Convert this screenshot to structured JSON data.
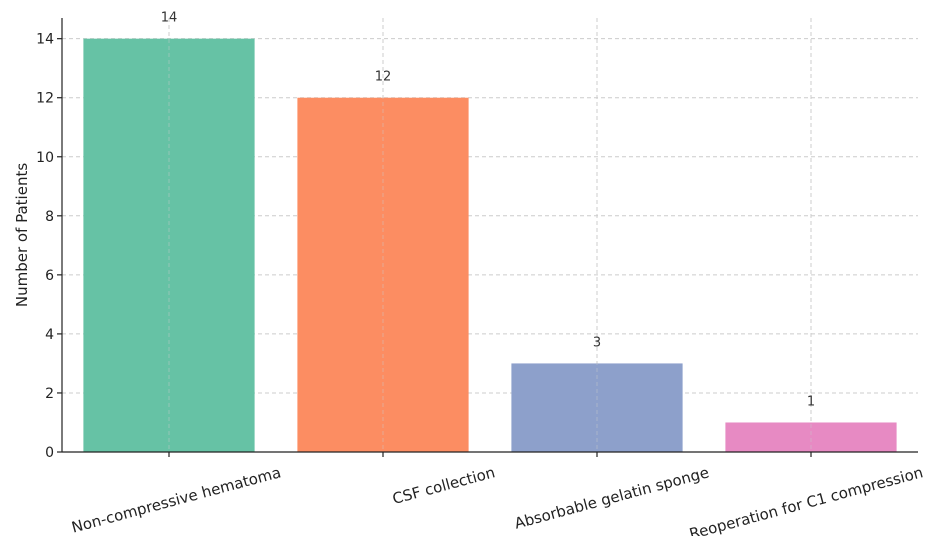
{
  "chart_data": {
    "type": "bar",
    "title": "",
    "xlabel": "",
    "ylabel": "Number of Patients",
    "categories": [
      "Non-compressive hematoma",
      "CSF collection",
      "Absorbable gelatin sponge",
      "Reoperation for C1 compression"
    ],
    "values": [
      14,
      12,
      3,
      1
    ],
    "data_labels": [
      "14",
      "12",
      "3",
      "1"
    ],
    "colors": [
      "#66c2a5",
      "#fc8d62",
      "#8da0cb",
      "#e78ac3"
    ],
    "ylim": [
      0,
      14.7
    ],
    "yticks": [
      0,
      2,
      4,
      6,
      8,
      10,
      12,
      14
    ],
    "grid": true,
    "legend": "none"
  }
}
